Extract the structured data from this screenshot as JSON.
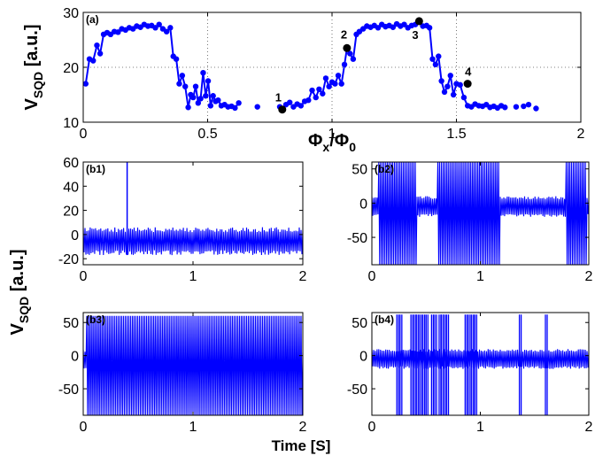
{
  "figure": {
    "ylabel_main": "V",
    "ylabel_sub": "SQD",
    "ylabel_unit": " [a.u.]",
    "xlabel_a_phi_x": "Φ",
    "xlabel_a_sub_x": "x",
    "xlabel_a_slash": "/Φ",
    "xlabel_a_sub_0": "0",
    "xlabel_time": "Time [S]"
  },
  "chart_data": [
    {
      "id": "a",
      "panel_label": "(a)",
      "type": "line",
      "marker": "circle",
      "color": "#0000ff",
      "xlim": [
        0,
        2
      ],
      "ylim": [
        10,
        30
      ],
      "xticks": [
        0,
        0.5,
        1,
        1.5,
        2
      ],
      "xtick_labels": [
        "0",
        "0.5",
        "1",
        "1.5",
        "2"
      ],
      "yticks": [
        10,
        20,
        30
      ],
      "ytick_labels": [
        "10",
        "20",
        "30"
      ],
      "grid": true,
      "segments": [
        [
          [
            0.01,
            17.0
          ],
          [
            0.025,
            21.5
          ],
          [
            0.04,
            21.2
          ],
          [
            0.055,
            24.0
          ],
          [
            0.068,
            22.5
          ],
          [
            0.082,
            26.0
          ],
          [
            0.096,
            26.3
          ],
          [
            0.11,
            26.0
          ],
          [
            0.125,
            26.5
          ],
          [
            0.14,
            26.4
          ],
          [
            0.155,
            27.0
          ],
          [
            0.17,
            26.8
          ],
          [
            0.185,
            27.2
          ],
          [
            0.2,
            27.0
          ],
          [
            0.215,
            27.5
          ],
          [
            0.23,
            27.3
          ],
          [
            0.245,
            27.8
          ],
          [
            0.26,
            27.5
          ],
          [
            0.275,
            27.6
          ],
          [
            0.29,
            27.2
          ],
          [
            0.305,
            27.8
          ],
          [
            0.32,
            27.0
          ],
          [
            0.335,
            26.5
          ],
          [
            0.35,
            27.2
          ],
          [
            0.362,
            22.0
          ],
          [
            0.374,
            21.5
          ],
          [
            0.386,
            17.0
          ],
          [
            0.398,
            18.5
          ],
          [
            0.41,
            16.5
          ],
          [
            0.422,
            12.7
          ],
          [
            0.432,
            15.0
          ],
          [
            0.442,
            14.5
          ],
          [
            0.452,
            16.5
          ],
          [
            0.462,
            13.5
          ],
          [
            0.472,
            14.3
          ],
          [
            0.482,
            19.0
          ],
          [
            0.492,
            14.8
          ],
          [
            0.502,
            17.5
          ],
          [
            0.512,
            13.0
          ],
          [
            0.522,
            14.8
          ],
          [
            0.532,
            13.8
          ],
          [
            0.542,
            14.0
          ],
          [
            0.555,
            13.0
          ],
          [
            0.568,
            13.2
          ],
          [
            0.582,
            12.8
          ],
          [
            0.596,
            12.9
          ],
          [
            0.61,
            12.6
          ],
          [
            0.625,
            13.5
          ]
        ],
        [
          [
            0.845,
            12.8
          ],
          [
            0.86,
            13.3
          ],
          [
            0.875,
            13.0
          ],
          [
            0.89,
            13.8
          ],
          [
            0.905,
            14.0
          ],
          [
            0.92,
            15.8
          ],
          [
            0.935,
            14.5
          ],
          [
            0.948,
            16.0
          ],
          [
            0.962,
            15.2
          ],
          [
            0.975,
            18.0
          ],
          [
            0.988,
            16.5
          ],
          [
            1.0,
            17.3
          ],
          [
            1.012,
            17.0
          ],
          [
            1.025,
            18.5
          ],
          [
            1.038,
            17.0
          ],
          [
            1.05,
            20.5
          ],
          [
            1.06,
            23.5
          ],
          [
            1.072,
            22.5
          ],
          [
            1.085,
            21.5
          ],
          [
            1.098,
            26.0
          ],
          [
            1.11,
            26.5
          ],
          [
            1.125,
            27.0
          ],
          [
            1.14,
            27.5
          ],
          [
            1.155,
            27.3
          ],
          [
            1.17,
            27.6
          ],
          [
            1.185,
            27.2
          ],
          [
            1.2,
            27.8
          ],
          [
            1.215,
            27.4
          ],
          [
            1.23,
            27.6
          ],
          [
            1.245,
            27.3
          ],
          [
            1.26,
            27.9
          ],
          [
            1.275,
            27.5
          ],
          [
            1.29,
            27.8
          ],
          [
            1.305,
            27.2
          ],
          [
            1.32,
            27.6
          ],
          [
            1.335,
            27.8
          ],
          [
            1.35,
            28.3
          ],
          [
            1.365,
            27.5
          ],
          [
            1.38,
            27.6
          ],
          [
            1.392,
            27.2
          ],
          [
            1.404,
            21.5
          ],
          [
            1.416,
            20.5
          ],
          [
            1.428,
            22.0
          ],
          [
            1.44,
            17.5
          ],
          [
            1.452,
            15.5
          ],
          [
            1.464,
            16.5
          ],
          [
            1.476,
            18.5
          ],
          [
            1.488,
            15.0
          ],
          [
            1.5,
            17.0
          ],
          [
            1.515,
            16.8
          ],
          [
            1.53,
            14.5
          ],
          [
            1.545,
            13.0
          ],
          [
            1.56,
            12.8
          ],
          [
            1.575,
            13.3
          ],
          [
            1.59,
            13.0
          ],
          [
            1.605,
            12.9
          ],
          [
            1.62,
            13.2
          ],
          [
            1.635,
            12.7
          ],
          [
            1.65,
            12.9
          ],
          [
            1.665,
            12.6
          ],
          [
            1.68,
            13.0
          ],
          [
            1.695,
            12.7
          ]
        ]
      ],
      "isolated_points": [
        [
          0.7,
          12.8
        ],
        [
          0.79,
          12.8
        ],
        [
          0.815,
          13.2
        ],
        [
          0.83,
          13.6
        ],
        [
          1.74,
          12.8
        ],
        [
          1.77,
          12.9
        ],
        [
          1.79,
          13.2
        ],
        [
          1.82,
          12.5
        ]
      ],
      "labeled_points": [
        {
          "label": "1",
          "x": 0.8,
          "y": 12.3
        },
        {
          "label": "2",
          "x": 1.06,
          "y": 23.5
        },
        {
          "label": "3",
          "x": 1.35,
          "y": 28.4
        },
        {
          "label": "4",
          "x": 1.545,
          "y": 17.0
        }
      ]
    },
    {
      "id": "b1",
      "panel_label": "(b1)",
      "type": "line",
      "color": "#0000ff",
      "xlim": [
        0,
        2
      ],
      "ylim": [
        -25,
        60
      ],
      "xticks": [
        0,
        1,
        2
      ],
      "xtick_labels": [
        "0",
        "1",
        "2"
      ],
      "yticks": [
        -20,
        0,
        20,
        40,
        60
      ],
      "ytick_labels": [
        "-20",
        "0",
        "20",
        "40",
        "60"
      ],
      "noise_band": [
        -17,
        6
      ],
      "n_cycles": 125,
      "spikes": [
        {
          "t": 0.4,
          "peak": 62
        }
      ]
    },
    {
      "id": "b2",
      "panel_label": "(b2)",
      "type": "line",
      "color": "#0000ff",
      "xlim": [
        0,
        2
      ],
      "ylim": [
        -90,
        60
      ],
      "xticks": [
        0,
        1,
        2
      ],
      "xtick_labels": [
        "0",
        "1",
        "2"
      ],
      "yticks": [
        -50,
        0,
        50
      ],
      "ytick_labels": [
        "-50",
        "0",
        "50"
      ],
      "noise_band": [
        -20,
        10
      ],
      "n_cycles": 125,
      "active_windows": [
        [
          0.05,
          0.4
        ],
        [
          0.6,
          1.18
        ],
        [
          1.78,
          1.98
        ]
      ],
      "spike_low": -90,
      "spike_high": 60
    },
    {
      "id": "b3",
      "panel_label": "(b3)",
      "type": "line",
      "color": "#0000ff",
      "xlim": [
        0,
        2
      ],
      "ylim": [
        -90,
        65
      ],
      "xticks": [
        0,
        1,
        2
      ],
      "xtick_labels": [
        "0",
        "1",
        "2"
      ],
      "yticks": [
        -50,
        0,
        50
      ],
      "ytick_labels": [
        "-50",
        "0",
        "50"
      ],
      "noise_band": [
        -20,
        10
      ],
      "n_cycles": 125,
      "active_windows": [
        [
          0.02,
          2.0
        ]
      ],
      "spike_low": -90,
      "spike_high": 60
    },
    {
      "id": "b4",
      "panel_label": "(b4)",
      "type": "line",
      "color": "#0000ff",
      "xlim": [
        0,
        2
      ],
      "ylim": [
        -90,
        65
      ],
      "xticks": [
        0,
        1,
        2
      ],
      "xtick_labels": [
        "0",
        "1",
        "2"
      ],
      "yticks": [
        -50,
        0,
        50
      ],
      "ytick_labels": [
        "-50",
        "0",
        "50"
      ],
      "noise_band": [
        -20,
        10
      ],
      "n_cycles": 125,
      "spike_times": [
        0.23,
        0.26,
        0.36,
        0.39,
        0.41,
        0.44,
        0.47,
        0.5,
        0.55,
        0.58,
        0.62,
        0.64,
        0.66,
        0.69,
        0.86,
        0.89,
        0.92,
        0.95,
        1.36,
        1.6
      ],
      "spike_low": -90,
      "spike_high": 62
    }
  ]
}
